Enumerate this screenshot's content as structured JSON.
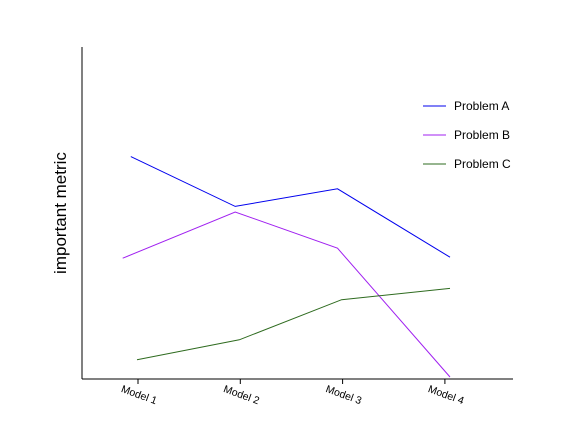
{
  "chart_data": {
    "type": "line",
    "title": "",
    "xlabel": "",
    "ylabel": "important metric",
    "ylim": [
      0,
      100
    ],
    "grid": false,
    "legend": "top-right",
    "series": [
      {
        "name": "Problem A",
        "color": "#0000ee",
        "points": [
          {
            "x": 0.93,
            "y": 67
          },
          {
            "x": 1.95,
            "y": 52
          },
          {
            "x": 2.95,
            "y": 57.3
          },
          {
            "x": 4.05,
            "y": 36.7
          }
        ]
      },
      {
        "name": "Problem B",
        "color": "#a020f0",
        "points": [
          {
            "x": 0.85,
            "y": 36.4
          },
          {
            "x": 1.95,
            "y": 50.3
          },
          {
            "x": 2.95,
            "y": 39.4
          },
          {
            "x": 4.05,
            "y": 0.6
          }
        ]
      },
      {
        "name": "Problem C",
        "color": "#2e6b1f",
        "points": [
          {
            "x": 0.99,
            "y": 5.8
          },
          {
            "x": 1.99,
            "y": 11.8
          },
          {
            "x": 2.99,
            "y": 23.9
          },
          {
            "x": 4.05,
            "y": 27.3
          }
        ]
      }
    ],
    "categories": [
      "Model 1",
      "Model 2",
      "Model 3",
      "Model 4"
    ],
    "category_positions": [
      1,
      2,
      3,
      4
    ]
  }
}
